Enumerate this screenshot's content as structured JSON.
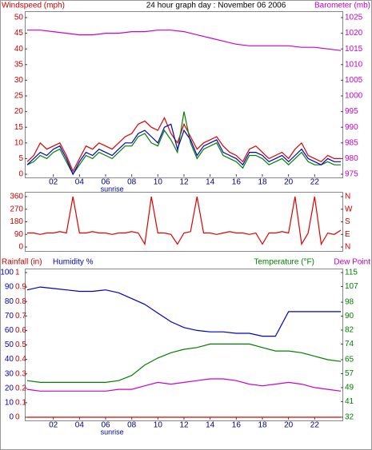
{
  "chart_data": [
    {
      "type": "line",
      "title": "24 hour graph day : November 06 2006",
      "ylabel": "Windspeed (mph)",
      "y2label": "Barometer (mb)",
      "xlim": [
        0,
        24
      ],
      "xticks": [
        {
          "value": 2,
          "label": "02"
        },
        {
          "value": 4,
          "label": "04"
        },
        {
          "value": 6,
          "label": "06"
        },
        {
          "value": 8,
          "label": "08"
        },
        {
          "value": 10,
          "label": "10"
        },
        {
          "value": 12,
          "label": "12"
        },
        {
          "value": 14,
          "label": "14"
        },
        {
          "value": 16,
          "label": "16"
        },
        {
          "value": 18,
          "label": "18"
        },
        {
          "value": 20,
          "label": "20"
        },
        {
          "value": 22,
          "label": "22"
        }
      ],
      "annotation": {
        "text": "sunrise",
        "x": 6.5
      },
      "ylim": [
        0,
        50
      ],
      "yticks": [
        0,
        5,
        10,
        15,
        20,
        25,
        30,
        35,
        40,
        45,
        50
      ],
      "ycolor": "#d00000",
      "y2lim": [
        975,
        1025
      ],
      "y2ticks": [
        975,
        980,
        985,
        990,
        995,
        1000,
        1005,
        1010,
        1015,
        1020,
        1025
      ],
      "y2color": "#cc00cc",
      "x": [
        0,
        0.5,
        1,
        1.5,
        2,
        2.5,
        3,
        3.5,
        4,
        4.5,
        5,
        5.5,
        6,
        6.5,
        7,
        7.5,
        8,
        8.5,
        9,
        9.5,
        10,
        10.5,
        11,
        11.5,
        12,
        12.5,
        13,
        13.5,
        14,
        14.5,
        15,
        15.5,
        16,
        16.5,
        17,
        17.5,
        18,
        18.5,
        19,
        19.5,
        20,
        20.5,
        21,
        21.5,
        22,
        22.5,
        23,
        23.5,
        24
      ],
      "series": [
        {
          "color": "#e00000",
          "values": [
            4,
            6,
            10,
            8,
            9,
            10,
            6,
            1,
            5,
            9,
            8,
            10,
            9,
            8,
            10,
            12,
            13,
            16,
            17,
            15,
            14,
            18,
            13,
            10,
            16,
            12,
            8,
            10,
            11,
            12,
            9,
            7,
            6,
            4,
            8,
            9,
            7,
            5,
            6,
            7,
            5,
            8,
            10,
            6,
            5,
            4,
            6,
            5,
            5
          ]
        },
        {
          "color": "#008000",
          "values": [
            3,
            4,
            6,
            5,
            7,
            8,
            4,
            0,
            3,
            6,
            5,
            7,
            6,
            5,
            7,
            9,
            9,
            12,
            13,
            10,
            9,
            14,
            11,
            7,
            20,
            10,
            5,
            8,
            9,
            10,
            6,
            5,
            4,
            2,
            6,
            6,
            5,
            3,
            4,
            5,
            3,
            5,
            7,
            4,
            3,
            3,
            4,
            3,
            3
          ]
        },
        {
          "color": "#0000c0",
          "values": [
            3,
            5,
            7,
            6,
            8,
            9,
            5,
            0,
            4,
            7,
            6,
            8,
            7,
            6,
            8,
            10,
            10,
            13,
            14,
            12,
            10,
            15,
            16,
            8,
            14,
            11,
            6,
            9,
            10,
            11,
            7,
            6,
            5,
            3,
            7,
            7,
            6,
            4,
            5,
            6,
            4,
            6,
            8,
            5,
            4,
            3,
            5,
            4,
            4
          ]
        },
        {
          "color": "#cc00cc",
          "axis": "y2",
          "x": [
            0,
            1,
            2,
            3,
            4,
            5,
            6,
            7,
            8,
            9,
            10,
            11,
            12,
            13,
            14,
            15,
            16,
            17,
            18,
            19,
            20,
            21,
            22,
            23,
            24
          ],
          "values": [
            1021,
            1021,
            1020.5,
            1020,
            1019.5,
            1019.5,
            1020,
            1020,
            1020.5,
            1020.5,
            1021,
            1021,
            1020.5,
            1019.5,
            1018.5,
            1017.5,
            1016.5,
            1016,
            1016,
            1016,
            1016,
            1015.5,
            1015.5,
            1015,
            1014.5
          ]
        }
      ]
    },
    {
      "type": "line",
      "xlim": [
        0,
        24
      ],
      "ylim": [
        0,
        360
      ],
      "yticks": [
        0,
        90,
        180,
        270,
        360
      ],
      "ycolor": "#d00000",
      "y2lim": [
        0,
        360
      ],
      "y2ticks": [
        {
          "value": 0,
          "label": "N"
        },
        {
          "value": 90,
          "label": "E"
        },
        {
          "value": 180,
          "label": "S"
        },
        {
          "value": 270,
          "label": "W"
        },
        {
          "value": 360,
          "label": "N"
        }
      ],
      "y2color": "#d00000",
      "x": [
        0,
        0.5,
        1,
        1.5,
        2,
        2.5,
        3,
        3.5,
        4,
        4.5,
        5,
        5.5,
        6,
        6.5,
        7,
        7.5,
        8,
        8.5,
        9,
        9.5,
        10,
        10.5,
        11,
        11.5,
        12,
        12.5,
        13,
        13.5,
        14,
        14.5,
        15,
        15.5,
        16,
        16.5,
        17,
        17.5,
        18,
        18.5,
        19,
        19.5,
        20,
        20.5,
        21,
        21.5,
        22,
        22.5,
        23,
        23.5,
        24
      ],
      "series": [
        {
          "color": "#e00000",
          "values": [
            100,
            100,
            90,
            100,
            100,
            110,
            100,
            360,
            100,
            100,
            110,
            100,
            100,
            90,
            100,
            100,
            110,
            100,
            20,
            360,
            100,
            100,
            90,
            20,
            100,
            110,
            360,
            100,
            100,
            90,
            100,
            110,
            100,
            100,
            90,
            100,
            20,
            100,
            100,
            110,
            100,
            360,
            20,
            100,
            360,
            20,
            100,
            90,
            120
          ]
        }
      ]
    },
    {
      "type": "line",
      "ylabel": "Humidity %",
      "y3label": "Rainfall (in)",
      "y2label": "Temperature (°F)",
      "y2label2": "Dew Point",
      "xlim": [
        0,
        24
      ],
      "xticks": [
        {
          "value": 2,
          "label": "02"
        },
        {
          "value": 4,
          "label": "04"
        },
        {
          "value": 6,
          "label": "06"
        },
        {
          "value": 8,
          "label": "08"
        },
        {
          "value": 10,
          "label": "10"
        },
        {
          "value": 12,
          "label": "12"
        },
        {
          "value": 14,
          "label": "14"
        },
        {
          "value": 16,
          "label": "16"
        },
        {
          "value": 18,
          "label": "18"
        },
        {
          "value": 20,
          "label": "20"
        },
        {
          "value": 22,
          "label": "22"
        }
      ],
      "annotation": {
        "text": "sunrise",
        "x": 6.5
      },
      "ylim": [
        0,
        100
      ],
      "yticks": [
        0,
        10,
        20,
        30,
        40,
        50,
        60,
        70,
        80,
        90,
        100
      ],
      "ycolor": "#0000c0",
      "y3lim": [
        0,
        1
      ],
      "y3ticks": [
        0,
        0.1,
        0.2,
        0.3,
        0.4,
        0.5,
        0.6,
        0.7,
        0.8,
        0.9,
        1
      ],
      "y3color": "#d00000",
      "y2lim": [
        32,
        115
      ],
      "y2ticks": [
        32,
        41,
        49,
        57,
        65,
        74,
        82,
        90,
        98,
        107,
        115
      ],
      "y2color": "#008000",
      "x": [
        0,
        1,
        2,
        3,
        4,
        5,
        6,
        7,
        8,
        9,
        10,
        11,
        12,
        13,
        14,
        15,
        16,
        17,
        18,
        19,
        20,
        21,
        22,
        23,
        24
      ],
      "series": [
        {
          "color": "#0000c0",
          "values": [
            88,
            90,
            89,
            88,
            87,
            87,
            88,
            86,
            82,
            78,
            72,
            66,
            62,
            60,
            59,
            59,
            58,
            58,
            56,
            56,
            73,
            73,
            73,
            73,
            73
          ]
        },
        {
          "color": "#008000",
          "axis": "y2",
          "values": [
            53,
            52,
            52,
            52,
            52,
            52,
            52,
            53,
            56,
            62,
            66,
            69,
            71,
            72,
            74,
            74,
            74,
            74,
            72,
            70,
            70,
            69,
            67,
            65,
            64
          ]
        },
        {
          "color": "#cc00cc",
          "axis": "y2",
          "values": [
            48,
            47,
            47,
            47,
            47,
            47,
            47,
            48,
            48,
            50,
            52,
            51,
            52,
            53,
            54,
            54,
            53,
            51,
            50,
            51,
            52,
            51,
            49,
            48,
            47
          ]
        },
        {
          "color": "#e00000",
          "axis": "y3",
          "values": [
            0,
            0,
            0,
            0,
            0,
            0,
            0,
            0,
            0,
            0,
            0,
            0,
            0,
            0,
            0,
            0,
            0,
            0,
            0,
            0,
            0,
            0,
            0,
            0,
            0
          ]
        }
      ]
    }
  ]
}
